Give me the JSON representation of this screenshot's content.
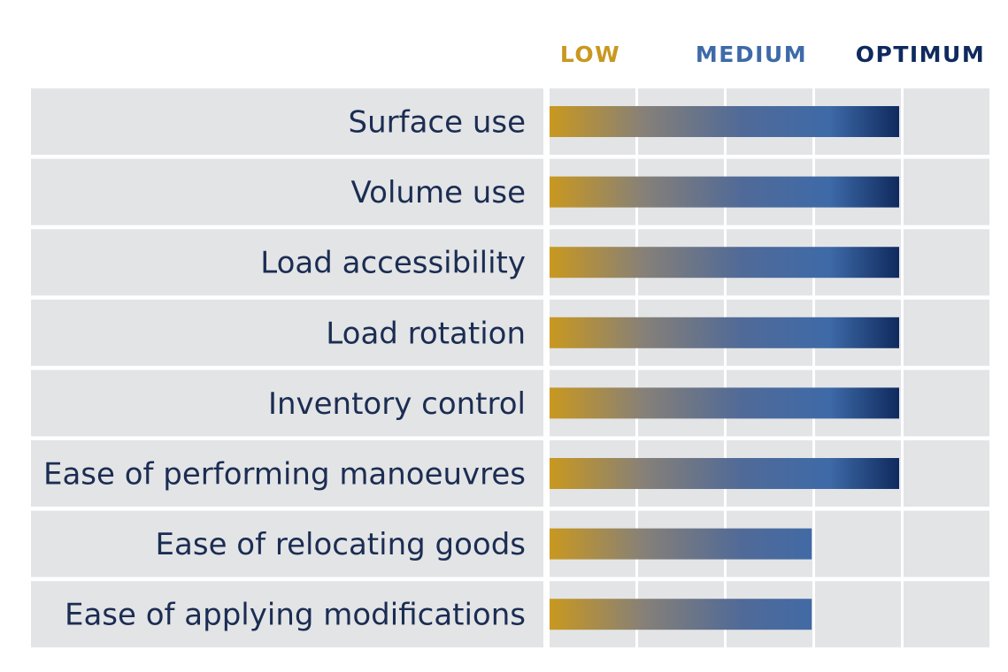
{
  "colors": {
    "low": "#c9981f",
    "medium": "#3e6aa8",
    "optimum": "#0f2a5e",
    "cell_bg": "#e3e4e6",
    "label_text": "#1b2d52"
  },
  "chart_data": {
    "type": "bar",
    "orientation": "horizontal",
    "scale_levels": [
      "LOW",
      "MEDIUM",
      "OPTIMUM"
    ],
    "categories": [
      "Surface use",
      "Volume use",
      "Load accessibility",
      "Load rotation",
      "Inventory control",
      "Ease of performing manoeuvres",
      "Ease of relocating goods",
      "Ease of applying modifications"
    ],
    "values": [
      4,
      4,
      4,
      4,
      4,
      4,
      3,
      3
    ],
    "xlim": [
      0,
      5
    ],
    "grid": true
  }
}
